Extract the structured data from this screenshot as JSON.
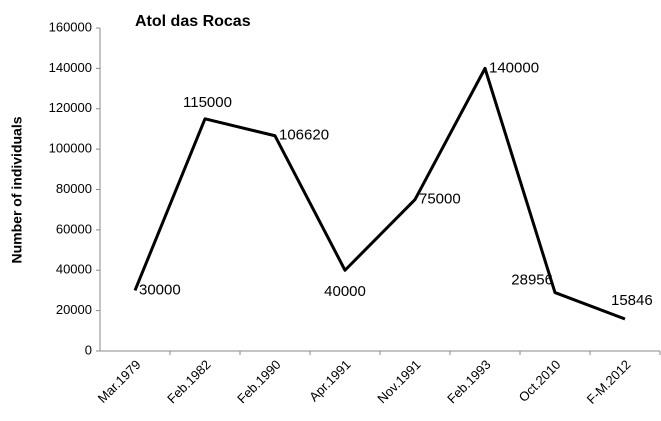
{
  "chart_data": {
    "type": "line",
    "title": "Atol das Rocas",
    "y_label": "Number of individuals",
    "categories": [
      "Mar.1979",
      "Feb.1982",
      "Feb.1990",
      "Apr.1991",
      "Nov.1991",
      "Feb.1993",
      "Oct.2010",
      "F-M.2012"
    ],
    "values": [
      30000,
      115000,
      106620,
      40000,
      75000,
      140000,
      28956,
      15846
    ],
    "color": "#000000",
    "ylim": [
      0,
      160000
    ],
    "yticks": [
      0,
      20000,
      40000,
      60000,
      80000,
      100000,
      120000,
      140000,
      160000
    ],
    "grid": false
  }
}
